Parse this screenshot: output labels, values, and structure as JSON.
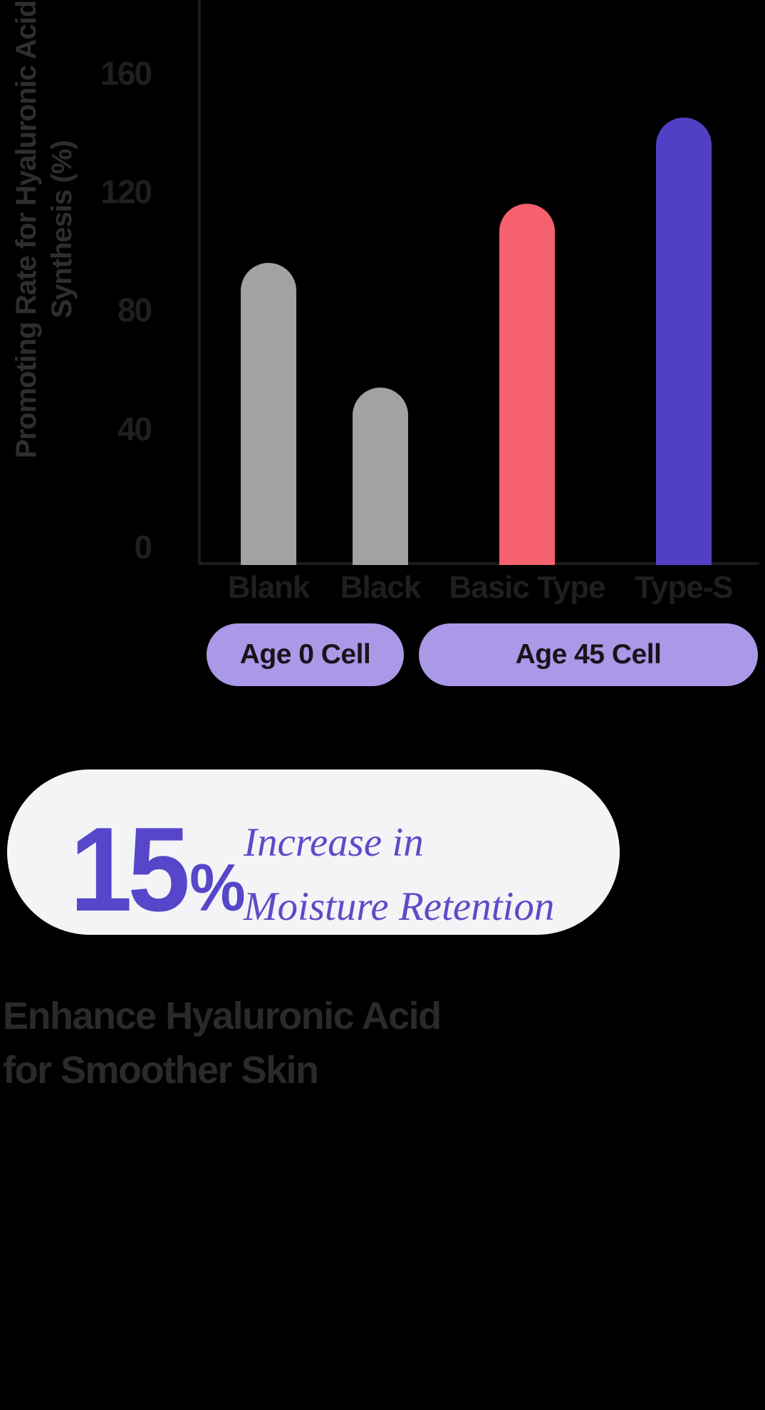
{
  "chart_data": {
    "type": "bar",
    "ylabel": "Promoting Rate for Hyaluronic Acid Synthesis (%)",
    "ylabel_lines": [
      "Promoting Rate for Hyaluronic Acid",
      "Synthesis (%)"
    ],
    "categories": [
      "Blank",
      "Black",
      "Basic Type",
      "Type-S"
    ],
    "values": [
      96,
      54,
      116,
      145
    ],
    "bar_colors": [
      "#a2a2a2",
      "#a2a2a2",
      "#f5616d",
      "#5140c6"
    ],
    "yticks": [
      0,
      40,
      80,
      120,
      160
    ],
    "ylim": [
      0,
      175
    ],
    "grid": false,
    "legend_position": "below-axis",
    "groups": [
      {
        "label": "Age 0 Cell",
        "categories": [
          "Blank",
          "Black"
        ]
      },
      {
        "label": "Age 45 Cell",
        "categories": [
          "Basic Type",
          "Type-S"
        ]
      }
    ]
  },
  "stat_card": {
    "value": "15",
    "unit": "%",
    "description_line1": "Increase in",
    "description_line2": "Moisture Retention"
  },
  "heading": {
    "line1": "Enhance Hyaluronic Acid",
    "line2": "for Smoother Skin"
  },
  "colors": {
    "background": "#000000",
    "axis": "#1c1c1c",
    "bar_gray": "#a2a2a2",
    "bar_red": "#f5616d",
    "bar_purple": "#5140c6",
    "pill_background": "#aa99e6",
    "pill_text": "#17141c",
    "card_background": "#f4f3f6",
    "accent_purple": "#5a46cb",
    "stat_text_purple": "#5646c9",
    "desc_text_purple": "#5d4bc9",
    "text_dark": "#1f1f1f"
  }
}
